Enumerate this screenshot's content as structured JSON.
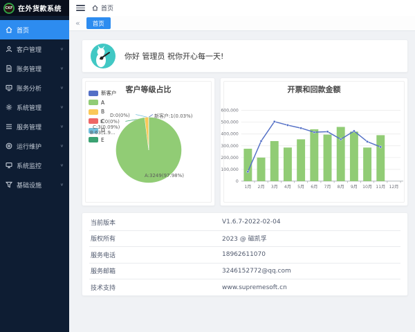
{
  "app": {
    "logo_text": "CKF",
    "title": "在外货款系统"
  },
  "sidebar": {
    "items": [
      {
        "label": "首页",
        "icon": "home-icon",
        "active": true,
        "expandable": false
      },
      {
        "label": "客户管理",
        "icon": "user-icon",
        "active": false,
        "expandable": true
      },
      {
        "label": "账务管理",
        "icon": "file-icon",
        "active": false,
        "expandable": true
      },
      {
        "label": "账务分析",
        "icon": "analysis-icon",
        "active": false,
        "expandable": true
      },
      {
        "label": "系统管理",
        "icon": "gear-icon",
        "active": false,
        "expandable": true
      },
      {
        "label": "服务管理",
        "icon": "list-icon",
        "active": false,
        "expandable": true
      },
      {
        "label": "运行维护",
        "icon": "maintenance-icon",
        "active": false,
        "expandable": true
      },
      {
        "label": "系统监控",
        "icon": "monitor-icon",
        "active": false,
        "expandable": true
      },
      {
        "label": "基础设施",
        "icon": "funnel-icon",
        "active": false,
        "expandable": true
      }
    ],
    "chevron_glyph": "∨"
  },
  "header": {
    "breadcrumb": "首页"
  },
  "tabbar": {
    "active_tab": "首页",
    "collapse_arrow": "«"
  },
  "greeting": {
    "text": "你好 管理员 祝你开心每一天!"
  },
  "chart_data": [
    {
      "type": "pie",
      "title": "客户等级占比",
      "legend": [
        "新客户",
        "A",
        "B",
        "C",
        "D",
        "E"
      ],
      "series": [
        {
          "name": "新客户",
          "value": 1,
          "label": "新客户:1(0.03%)"
        },
        {
          "name": "A",
          "value": 3249,
          "label": "A:3249(97.98%)"
        },
        {
          "name": "B",
          "value": 63,
          "label": "B:63(1.9..."
        },
        {
          "name": "C",
          "value": 3,
          "label": "C:3(0.09%)"
        },
        {
          "name": "D",
          "value": 0,
          "label": "D:0(0%)"
        },
        {
          "name": "E",
          "value": 0,
          "label": "E:0(0%)"
        }
      ],
      "colors": [
        "#5470c6",
        "#91cc75",
        "#fac858",
        "#ee6666",
        "#73c0de",
        "#3ba272"
      ],
      "legend_position": "left"
    },
    {
      "type": "bar+line",
      "title": "开票和回款金额",
      "categories": [
        "1月",
        "2月",
        "3月",
        "4月",
        "5月",
        "6月",
        "7月",
        "8月",
        "9月",
        "10月",
        "11月",
        "12月"
      ],
      "series": [
        {
          "type": "bar",
          "color": "#91cc75",
          "values": [
            275000,
            200000,
            340000,
            285000,
            355000,
            440000,
            395000,
            460000,
            420000,
            285000,
            390000,
            0
          ]
        },
        {
          "type": "line",
          "color": "#5470c6",
          "values": [
            80000,
            340000,
            505000,
            475000,
            450000,
            415000,
            420000,
            355000,
            425000,
            335000,
            290000,
            null
          ]
        }
      ],
      "ylim": [
        0,
        600000
      ],
      "yticks": [
        0,
        100000,
        200000,
        300000,
        400000,
        500000,
        600000
      ],
      "grid": true,
      "legend_position": "none"
    }
  ],
  "info_table": {
    "rows": [
      {
        "label": "当前版本",
        "value": "V1.6.7-2022-02-04"
      },
      {
        "label": "版权所有",
        "value": "2023 @ 磁凯孚"
      },
      {
        "label": "服务电话",
        "value": "18962611070"
      },
      {
        "label": "服务邮箱",
        "value": "3246152772@qq.com"
      },
      {
        "label": "技术支持",
        "value": "www.supremesoft.cn"
      }
    ]
  },
  "colors": {
    "primary": "#2d8cf0",
    "sidebar_bg": "#0e1d33",
    "avatar_bg": "#41c8c4",
    "content_bg": "#f0f2f5"
  }
}
